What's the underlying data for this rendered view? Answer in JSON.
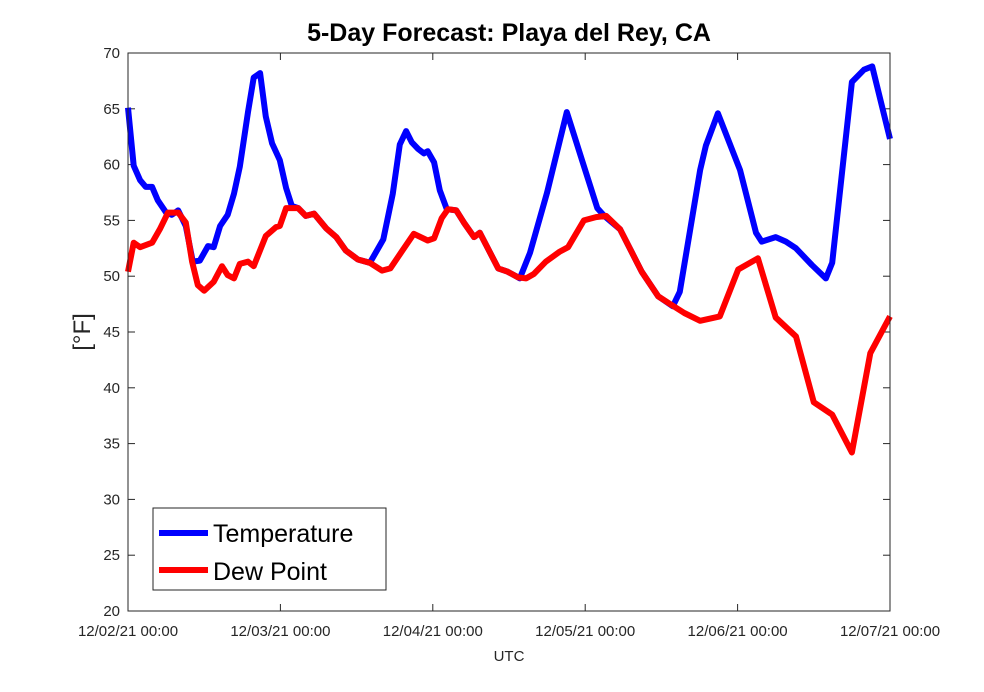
{
  "chart_data": {
    "type": "line",
    "title": "5-Day Forecast: Playa del Rey, CA",
    "xlabel": "UTC",
    "ylabel": "[°F]",
    "x_units": "hours since 12/02/21 00:00",
    "xlim": [
      0,
      120
    ],
    "ylim": [
      20,
      70
    ],
    "yticks": [
      20,
      25,
      30,
      35,
      40,
      45,
      50,
      55,
      60,
      65,
      70
    ],
    "xticks": [
      {
        "value": 0,
        "label": "12/02/21 00:00"
      },
      {
        "value": 24,
        "label": "12/03/21 00:00"
      },
      {
        "value": 48,
        "label": "12/04/21 00:00"
      },
      {
        "value": 72,
        "label": "12/05/21 00:00"
      },
      {
        "value": 96,
        "label": "12/06/21 00:00"
      },
      {
        "value": 120,
        "label": "12/07/21 00:00"
      }
    ],
    "grid": false,
    "legend_position": "bottom-left",
    "series": [
      {
        "name": "Temperature",
        "color": "#0000ff",
        "points": [
          [
            0,
            65.1
          ],
          [
            0.9,
            59.9
          ],
          [
            1.9,
            58.6
          ],
          [
            2.8,
            58
          ],
          [
            3.8,
            58
          ],
          [
            4.7,
            56.8
          ],
          [
            6.0,
            55.7
          ],
          [
            6.9,
            55.5
          ],
          [
            7.9,
            55.9
          ],
          [
            9.1,
            54.5
          ],
          [
            10.2,
            51.3
          ],
          [
            11.3,
            51.4
          ],
          [
            12.6,
            52.7
          ],
          [
            13.5,
            52.6
          ],
          [
            14.5,
            54.5
          ],
          [
            15.7,
            55.5
          ],
          [
            16.7,
            57.4
          ],
          [
            17.6,
            59.8
          ],
          [
            18.9,
            64.7
          ],
          [
            19.8,
            67.8
          ],
          [
            20.8,
            68.2
          ],
          [
            21.7,
            64.3
          ],
          [
            22.7,
            61.9
          ],
          [
            23.9,
            60.4
          ],
          [
            24.9,
            57.9
          ],
          [
            25.8,
            56.3
          ],
          [
            26.8,
            56.1
          ],
          [
            28.0,
            55.4
          ],
          [
            29.3,
            55.6
          ],
          [
            31.2,
            54.3
          ],
          [
            32.8,
            53.5
          ],
          [
            34.3,
            52.3
          ],
          [
            36.2,
            51.5
          ],
          [
            38.1,
            51.2
          ],
          [
            40.2,
            53.3
          ],
          [
            41.7,
            57.4
          ],
          [
            42.8,
            61.8
          ],
          [
            43.8,
            63.0
          ],
          [
            44.7,
            62.0
          ],
          [
            45.7,
            61.4
          ],
          [
            46.6,
            61.0
          ],
          [
            47.2,
            61.2
          ],
          [
            48.2,
            60.2
          ],
          [
            49.1,
            57.7
          ],
          [
            50.2,
            56.0
          ],
          [
            51.7,
            55.9
          ],
          [
            52.9,
            54.8
          ],
          [
            54.5,
            53.5
          ],
          [
            55.4,
            53.9
          ],
          [
            58.3,
            50.7
          ],
          [
            59.8,
            50.4
          ],
          [
            61.4,
            49.9
          ],
          [
            61.7,
            49.8
          ],
          [
            63.3,
            52.1
          ],
          [
            66.0,
            57.5
          ],
          [
            69.1,
            64.7
          ],
          [
            71.5,
            60.4
          ],
          [
            73.9,
            56.1
          ],
          [
            75.0,
            55.4
          ],
          [
            77.5,
            54.2
          ],
          [
            80.9,
            50.4
          ],
          [
            83.5,
            48.2
          ],
          [
            85.8,
            47.3
          ],
          [
            86.9,
            48.6
          ],
          [
            90.1,
            59.5
          ],
          [
            91.0,
            61.7
          ],
          [
            92.9,
            64.6
          ],
          [
            96.4,
            59.5
          ],
          [
            98.9,
            53.9
          ],
          [
            99.8,
            53.1
          ],
          [
            102.0,
            53.5
          ],
          [
            103.6,
            53.1
          ],
          [
            105.2,
            52.5
          ],
          [
            107.7,
            51.0
          ],
          [
            109.9,
            49.8
          ],
          [
            110.9,
            51.2
          ],
          [
            114.0,
            67.4
          ],
          [
            115.9,
            68.5
          ],
          [
            117.2,
            68.8
          ],
          [
            120,
            62.3
          ]
        ]
      },
      {
        "name": "Dew Point",
        "color": "#ff0000",
        "points": [
          [
            0,
            50.4
          ],
          [
            0.9,
            53
          ],
          [
            1.9,
            52.6
          ],
          [
            3.8,
            53
          ],
          [
            5.0,
            54.2
          ],
          [
            6.3,
            55.7
          ],
          [
            7.9,
            55.7
          ],
          [
            9.1,
            54.8
          ],
          [
            10.1,
            51.3
          ],
          [
            11.0,
            49.2
          ],
          [
            12.0,
            48.7
          ],
          [
            13.5,
            49.5
          ],
          [
            14.8,
            50.9
          ],
          [
            15.7,
            50.1
          ],
          [
            16.7,
            49.8
          ],
          [
            17.6,
            51.1
          ],
          [
            18.9,
            51.3
          ],
          [
            19.8,
            50.9
          ],
          [
            21.7,
            53.6
          ],
          [
            23.3,
            54.4
          ],
          [
            23.9,
            54.5
          ],
          [
            24.9,
            56.1
          ],
          [
            26.8,
            56.1
          ],
          [
            28.0,
            55.4
          ],
          [
            29.3,
            55.6
          ],
          [
            31.2,
            54.3
          ],
          [
            32.8,
            53.5
          ],
          [
            34.3,
            52.3
          ],
          [
            36.2,
            51.5
          ],
          [
            38.1,
            51.2
          ],
          [
            40.0,
            50.5
          ],
          [
            41.3,
            50.7
          ],
          [
            43.1,
            52.2
          ],
          [
            45.0,
            53.8
          ],
          [
            47.2,
            53.2
          ],
          [
            48.2,
            53.4
          ],
          [
            49.4,
            55.2
          ],
          [
            50.4,
            56.0
          ],
          [
            51.7,
            55.9
          ],
          [
            52.9,
            54.8
          ],
          [
            54.5,
            53.5
          ],
          [
            55.4,
            53.9
          ],
          [
            58.3,
            50.7
          ],
          [
            59.8,
            50.4
          ],
          [
            61.4,
            49.9
          ],
          [
            62.7,
            49.8
          ],
          [
            63.9,
            50.2
          ],
          [
            65.8,
            51.3
          ],
          [
            68.0,
            52.2
          ],
          [
            69.3,
            52.6
          ],
          [
            71.8,
            55.0
          ],
          [
            73.7,
            55.3
          ],
          [
            75.3,
            55.4
          ],
          [
            77.5,
            54.2
          ],
          [
            80.9,
            50.4
          ],
          [
            83.5,
            48.2
          ],
          [
            85.4,
            47.5
          ],
          [
            87.6,
            46.7
          ],
          [
            90.1,
            46.0
          ],
          [
            93.2,
            46.4
          ],
          [
            96.1,
            50.6
          ],
          [
            99.2,
            51.6
          ],
          [
            102.0,
            46.3
          ],
          [
            105.2,
            44.6
          ],
          [
            108.0,
            38.7
          ],
          [
            110.9,
            37.6
          ],
          [
            114.0,
            34.2
          ],
          [
            116.9,
            43.1
          ],
          [
            120,
            46.4
          ]
        ]
      }
    ]
  }
}
